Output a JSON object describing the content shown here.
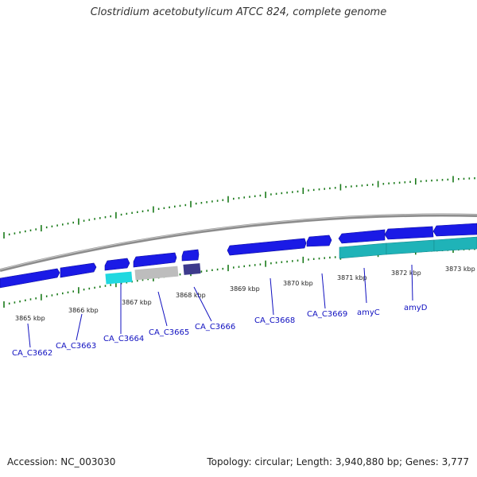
{
  "title": "Clostridium acetobutylicum ATCC 824, complete genome",
  "footer": {
    "accession": "Accession: NC_003030",
    "summary": "Topology: circular; Length: 3,940,880 bp; Genes: 3,777"
  },
  "colors": {
    "forward_gene": "#1a1ae6",
    "cyan_gene": "#20d8e0",
    "teal_gene": "#1fb3b8",
    "gray_gene": "#b8b8b8",
    "purple_gene": "#3d3a8c",
    "tick": "#1a7a1a",
    "backbone": "#9a9a9a",
    "label": "#1010c0"
  },
  "scale_labels": [
    "3865 kbp",
    "3866 kbp",
    "3867 kbp",
    "3868 kbp",
    "3869 kbp",
    "3870 kbp",
    "3871 kbp",
    "3872 kbp",
    "3873 kbp"
  ],
  "gene_labels": [
    "CA_C3662",
    "CA_C3663",
    "CA_C3664",
    "CA_C3665",
    "CA_C3666",
    "CA_C3668",
    "CA_C3669",
    "amyC",
    "amyD"
  ]
}
